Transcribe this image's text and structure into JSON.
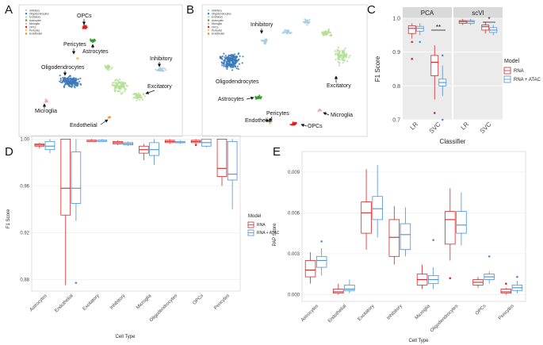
{
  "panel_labels": {
    "a": "A",
    "b": "B",
    "c": "C",
    "d": "D",
    "e": "E"
  },
  "umap_legend": [
    "Inhibitory",
    "Oligodendrocytes",
    "Excitatory",
    "Astrocytes",
    "Microglia",
    "OPCs",
    "Pericytes",
    "Endothelial"
  ],
  "umap_colors": [
    "#a6cee3",
    "#3b78b9",
    "#b4de94",
    "#33a02c",
    "#f4a5a5",
    "#e31a1c",
    "#fdbf6f",
    "#ff7f00"
  ],
  "panel_a": {
    "labels": {
      "opcs": "OPCs",
      "pericytes": "Pericytes",
      "astrocytes": "Astrocytes",
      "inhibitory": "Inhibitory",
      "oligodendrocytes": "Oligodendrocytes",
      "excitatory": "Excitatory",
      "microglia": "Microglia",
      "endothelial": "Endothelial"
    }
  },
  "panel_b": {
    "labels": {
      "inhibitory": "Inhibitory",
      "oligodendrocytes": "Oligodendrocytes",
      "excitatory": "Excitatory",
      "astrocytes": "Astrocytes",
      "pericytes": "Pericytes",
      "microglia": "Microglia",
      "endothelial": "Endothelial",
      "opcs": "OPCs"
    }
  },
  "legend": {
    "title": "Model",
    "items": [
      {
        "label": "RNA",
        "color": "#d62728"
      },
      {
        "label": "RNA + ATAC",
        "color": "#4a90d9"
      }
    ]
  },
  "chart_data": [
    {
      "id": "C",
      "type": "box",
      "facets": [
        "PCA",
        "scVI"
      ],
      "categories": [
        "LR",
        "SVC"
      ],
      "xlabel": "Classifier",
      "ylabel": "F1 Score",
      "ylim": [
        0.7,
        1.0
      ],
      "yticks": [
        0.7,
        0.8,
        0.9,
        1.0
      ],
      "significance": {
        "PCA": "**",
        "scVI": "*"
      },
      "series": [
        {
          "name": "RNA",
          "boxes": [
            {
              "facet": 0,
              "cat": 0,
              "whisker_low": 0.94,
              "q1": 0.955,
              "median": 0.97,
              "q3": 0.978,
              "whisker_high": 0.985,
              "outliers": [
                0.93,
                0.88
              ]
            },
            {
              "facet": 0,
              "cat": 1,
              "whisker_low": 0.76,
              "q1": 0.83,
              "median": 0.87,
              "q3": 0.89,
              "whisker_high": 0.92,
              "outliers": [
                0.72
              ]
            },
            {
              "facet": 1,
              "cat": 0,
              "whisker_low": 0.98,
              "q1": 0.985,
              "median": 0.99,
              "q3": 0.993,
              "whisker_high": 0.998,
              "outliers": []
            },
            {
              "facet": 1,
              "cat": 1,
              "whisker_low": 0.955,
              "q1": 0.965,
              "median": 0.975,
              "q3": 0.98,
              "whisker_high": 0.99,
              "outliers": []
            }
          ]
        },
        {
          "name": "RNA + ATAC",
          "boxes": [
            {
              "facet": 0,
              "cat": 0,
              "whisker_low": 0.95,
              "q1": 0.962,
              "median": 0.97,
              "q3": 0.976,
              "whisker_high": 0.985,
              "outliers": [
                0.93
              ]
            },
            {
              "facet": 0,
              "cat": 1,
              "whisker_low": 0.77,
              "q1": 0.8,
              "median": 0.81,
              "q3": 0.82,
              "whisker_high": 0.86,
              "outliers": [
                0.89,
                0.7
              ]
            },
            {
              "facet": 1,
              "cat": 0,
              "whisker_low": 0.98,
              "q1": 0.985,
              "median": 0.99,
              "q3": 0.993,
              "whisker_high": 0.998,
              "outliers": []
            },
            {
              "facet": 1,
              "cat": 1,
              "whisker_low": 0.95,
              "q1": 0.958,
              "median": 0.965,
              "q3": 0.972,
              "whisker_high": 0.98,
              "outliers": []
            }
          ]
        }
      ]
    },
    {
      "id": "D",
      "type": "box",
      "categories": [
        "Astrocytes",
        "Endothelial",
        "Excitatory",
        "Inhibitory",
        "Microglia",
        "Oligodendrocytes",
        "OPCs",
        "Pericytes"
      ],
      "xlabel": "Cell Type",
      "ylabel": "F1 Score",
      "ylim": [
        0.87,
        1.003
      ],
      "yticks": [
        0.88,
        0.92,
        0.96,
        1.0
      ],
      "ytick_labels": [
        "0.88",
        "0.92",
        "0.96",
        "1.00"
      ],
      "series": [
        {
          "name": "RNA",
          "boxes": [
            {
              "whisker_low": 0.992,
              "q1": 0.994,
              "median": 0.995,
              "q3": 0.996,
              "whisker_high": 0.997,
              "outliers": []
            },
            {
              "whisker_low": 0.875,
              "q1": 0.935,
              "median": 0.958,
              "q3": 1.0,
              "whisker_high": 1.0,
              "outliers": []
            },
            {
              "whisker_low": 0.998,
              "q1": 0.998,
              "median": 0.999,
              "q3": 0.999,
              "whisker_high": 1.0,
              "outliers": []
            },
            {
              "whisker_low": 0.995,
              "q1": 0.996,
              "median": 0.997,
              "q3": 0.998,
              "whisker_high": 0.999,
              "outliers": []
            },
            {
              "whisker_low": 0.982,
              "q1": 0.988,
              "median": 0.991,
              "q3": 0.994,
              "whisker_high": 0.996,
              "outliers": []
            },
            {
              "whisker_low": 0.996,
              "q1": 0.997,
              "median": 0.998,
              "q3": 0.999,
              "whisker_high": 1.0,
              "outliers": []
            },
            {
              "whisker_low": 0.995,
              "q1": 0.997,
              "median": 0.998,
              "q3": 0.999,
              "whisker_high": 1.0,
              "outliers": [
                0.995
              ]
            },
            {
              "whisker_low": 0.96,
              "q1": 0.968,
              "median": 0.975,
              "q3": 1.0,
              "whisker_high": 1.0,
              "outliers": []
            }
          ]
        },
        {
          "name": "RNA + ATAC",
          "boxes": [
            {
              "whisker_low": 0.988,
              "q1": 0.991,
              "median": 0.994,
              "q3": 0.998,
              "whisker_high": 1.0,
              "outliers": []
            },
            {
              "whisker_low": 0.93,
              "q1": 0.945,
              "median": 0.958,
              "q3": 0.989,
              "whisker_high": 1.0,
              "outliers": [
                0.877
              ]
            },
            {
              "whisker_low": 0.998,
              "q1": 0.998,
              "median": 0.999,
              "q3": 0.999,
              "whisker_high": 1.0,
              "outliers": []
            },
            {
              "whisker_low": 0.994,
              "q1": 0.995,
              "median": 0.996,
              "q3": 0.997,
              "whisker_high": 0.998,
              "outliers": []
            },
            {
              "whisker_low": 0.978,
              "q1": 0.986,
              "median": 0.991,
              "q3": 0.997,
              "whisker_high": 1.0,
              "outliers": []
            },
            {
              "whisker_low": 0.996,
              "q1": 0.997,
              "median": 0.997,
              "q3": 0.998,
              "whisker_high": 0.999,
              "outliers": []
            },
            {
              "whisker_low": 0.993,
              "q1": 0.994,
              "median": 0.997,
              "q3": 1.0,
              "whisker_high": 1.0,
              "outliers": []
            },
            {
              "whisker_low": 0.94,
              "q1": 0.965,
              "median": 0.97,
              "q3": 0.998,
              "whisker_high": 1.0,
              "outliers": []
            }
          ]
        }
      ]
    },
    {
      "id": "E",
      "type": "box",
      "categories": [
        "Astrocytes",
        "Endothelial",
        "Excitatory",
        "Inhibitory",
        "Microglia",
        "Oligodendrocytes",
        "OPCs",
        "Pericytes"
      ],
      "xlabel": "Cell Type",
      "ylabel": "PAP Score",
      "ylim": [
        -0.0005,
        0.0105
      ],
      "yticks": [
        0.0,
        0.003,
        0.006,
        0.009
      ],
      "ytick_labels": [
        "0.000",
        "0.003",
        "0.006",
        "0.009"
      ],
      "series": [
        {
          "name": "RNA",
          "boxes": [
            {
              "whisker_low": 0.0008,
              "q1": 0.0013,
              "median": 0.0018,
              "q3": 0.0025,
              "whisker_high": 0.0031,
              "outliers": []
            },
            {
              "whisker_low": 0.0,
              "q1": 0.0001,
              "median": 0.0002,
              "q3": 0.0004,
              "whisker_high": 0.0008,
              "outliers": []
            },
            {
              "whisker_low": 0.0033,
              "q1": 0.0045,
              "median": 0.006,
              "q3": 0.0068,
              "whisker_high": 0.0092,
              "outliers": []
            },
            {
              "whisker_low": 0.0022,
              "q1": 0.0028,
              "median": 0.0042,
              "q3": 0.0055,
              "whisker_high": 0.0065,
              "outliers": []
            },
            {
              "whisker_low": 0.0004,
              "q1": 0.0007,
              "median": 0.0011,
              "q3": 0.0015,
              "whisker_high": 0.0022,
              "outliers": []
            },
            {
              "whisker_low": 0.0025,
              "q1": 0.0037,
              "median": 0.0055,
              "q3": 0.0061,
              "whisker_high": 0.0078,
              "outliers": [
                0.0012
              ]
            },
            {
              "whisker_low": 0.0005,
              "q1": 0.0007,
              "median": 0.0009,
              "q3": 0.0011,
              "whisker_high": 0.0013,
              "outliers": []
            },
            {
              "whisker_low": 0.0,
              "q1": 0.0001,
              "median": 0.0002,
              "q3": 0.0004,
              "whisker_high": 0.0005,
              "outliers": [
                0.0008
              ]
            }
          ]
        },
        {
          "name": "RNA + ATAC",
          "boxes": [
            {
              "whisker_low": 0.0014,
              "q1": 0.002,
              "median": 0.0025,
              "q3": 0.0028,
              "whisker_high": 0.0034,
              "outliers": [
                0.0039
              ]
            },
            {
              "whisker_low": 0.0001,
              "q1": 0.0003,
              "median": 0.0004,
              "q3": 0.0007,
              "whisker_high": 0.0011,
              "outliers": []
            },
            {
              "whisker_low": 0.0042,
              "q1": 0.0055,
              "median": 0.0063,
              "q3": 0.0072,
              "whisker_high": 0.0095,
              "outliers": []
            },
            {
              "whisker_low": 0.0028,
              "q1": 0.0033,
              "median": 0.0044,
              "q3": 0.0052,
              "whisker_high": 0.0064,
              "outliers": []
            },
            {
              "whisker_low": 0.0004,
              "q1": 0.0008,
              "median": 0.0011,
              "q3": 0.0014,
              "whisker_high": 0.002,
              "outliers": [
                0.004
              ]
            },
            {
              "whisker_low": 0.0036,
              "q1": 0.0045,
              "median": 0.0051,
              "q3": 0.0061,
              "whisker_high": 0.0075,
              "outliers": []
            },
            {
              "whisker_low": 0.0008,
              "q1": 0.0011,
              "median": 0.0013,
              "q3": 0.0015,
              "whisker_high": 0.0017,
              "outliers": [
                0.0028
              ]
            },
            {
              "whisker_low": 0.0001,
              "q1": 0.0003,
              "median": 0.0005,
              "q3": 0.0007,
              "whisker_high": 0.001,
              "outliers": [
                0.0013
              ]
            }
          ]
        }
      ]
    }
  ]
}
